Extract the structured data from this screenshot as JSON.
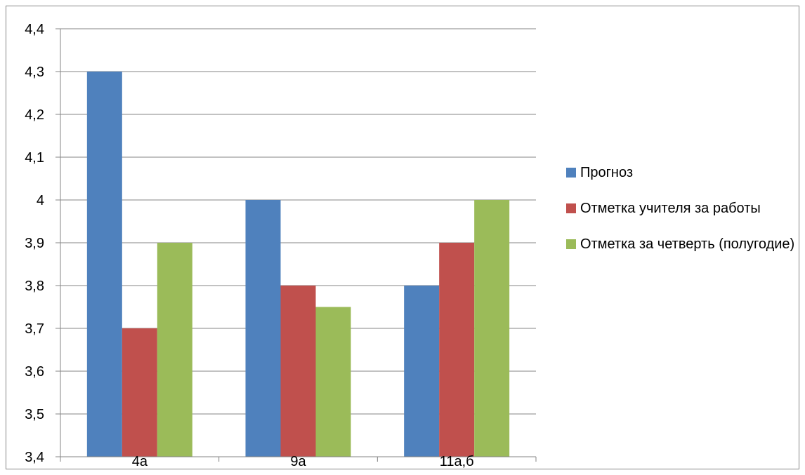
{
  "chart_data": {
    "type": "bar",
    "categories": [
      "4а",
      "9а",
      "11а,б"
    ],
    "series": [
      {
        "name": "Прогноз",
        "color": "#4F81BD",
        "values": [
          4.3,
          4.0,
          3.8
        ]
      },
      {
        "name": "Отметка учителя за работы",
        "color": "#C0504D",
        "values": [
          3.7,
          3.8,
          3.9
        ]
      },
      {
        "name": "Отметка за четверть (полугодие)",
        "color": "#9BBB59",
        "values": [
          3.9,
          3.75,
          4.0
        ]
      }
    ],
    "ylim": [
      3.4,
      4.4
    ],
    "yticks": [
      "3,4",
      "3,5",
      "3,6",
      "3,7",
      "3,8",
      "3,9",
      "4",
      "4,1",
      "4,2",
      "4,3",
      "4,4"
    ],
    "grid": true,
    "legend_position": "right",
    "title": "",
    "xlabel": "",
    "ylabel": ""
  }
}
